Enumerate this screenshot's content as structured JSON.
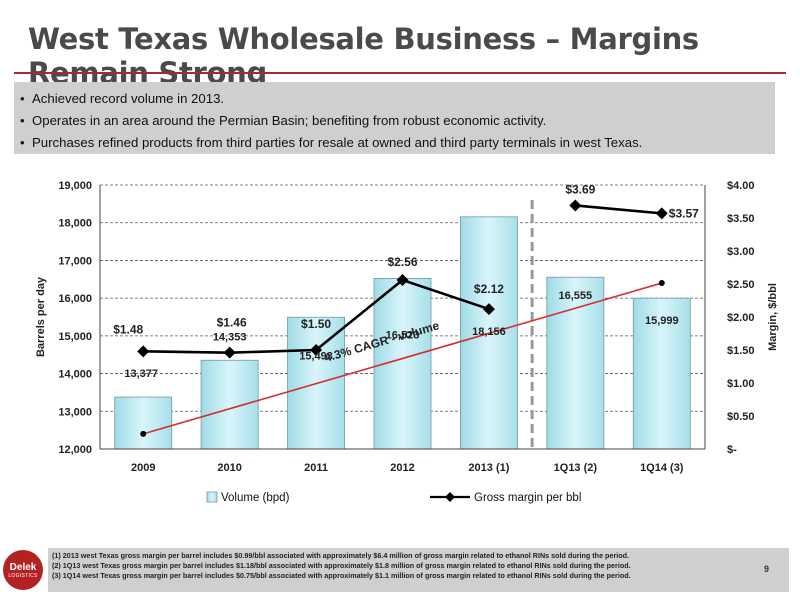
{
  "slide": {
    "title": "West Texas Wholesale Business – Margins Remain Strong",
    "bullets": [
      "Achieved record volume in 2013.",
      "Operates in an area around the Permian Basin; benefiting from robust economic activity.",
      "Purchases refined products from third parties for resale at owned and third party terminals in west Texas."
    ],
    "footnotes": [
      "(1) 2013 west Texas gross margin per barrel includes $0.99/bbl associated with approximately $6.4 million of gross margin related to ethanol RINs sold during the period.",
      "(2) 1Q13 west Texas gross margin per barrel includes $1.18/bbl associated with approximately $1.8 million of gross margin related to ethanol RINs sold during the period.",
      "(3) 1Q14 west Texas gross margin per barrel includes $0.75/bbl associated with approximately $1.1 million of gross margin related to ethanol RINs sold during the period."
    ],
    "page_number": "9",
    "logo_text": "Delek",
    "logo_subtext": "LOGISTICS"
  },
  "chart_data": {
    "type": "bar",
    "categories": [
      "2009",
      "2010",
      "2011",
      "2012",
      "2013 (1)",
      "1Q13 (2)",
      "1Q14 (3)"
    ],
    "xlabel": "",
    "ylabel": "Barrels per day",
    "y2label": "Margin, $/bbl",
    "ylim": [
      12000,
      19000
    ],
    "y_ticks": [
      "12,000",
      "13,000",
      "14,000",
      "15,000",
      "16,000",
      "17,000",
      "18,000",
      "19,000"
    ],
    "y2lim": [
      0,
      4
    ],
    "y2_ticks": [
      "$-",
      "$0.50",
      "$1.00",
      "$1.50",
      "$2.00",
      "$2.50",
      "$3.00",
      "$3.50",
      "$4.00"
    ],
    "grid": true,
    "legend_position": "bottom",
    "series": [
      {
        "name": "Volume (bpd)",
        "type": "bar",
        "axis": "left",
        "values": [
          13377,
          14353,
          15493,
          16523,
          18156,
          16555,
          15999
        ],
        "labels": [
          "13,377",
          "14,353",
          "15,493",
          "16,523",
          "18,156",
          "16,555",
          "15,999"
        ],
        "color": "#c6eef4"
      },
      {
        "name": "Gross margin per bbl",
        "type": "line",
        "axis": "right",
        "values": [
          1.48,
          1.46,
          1.5,
          2.56,
          2.12,
          3.69,
          3.57
        ],
        "labels": [
          "$1.48",
          "$1.46",
          "$1.50",
          "$2.56",
          "$2.12",
          "$3.69",
          "$3.57"
        ],
        "segments": [
          [
            0,
            1,
            2,
            3,
            4
          ],
          [
            5,
            6
          ]
        ],
        "color": "#000000"
      }
    ],
    "trendline": {
      "label": "4.3% CAGR - volume",
      "from_index": 0,
      "to_index": 6,
      "y_start": 12400,
      "y_end": 16400
    },
    "divider_after_index": 4
  }
}
